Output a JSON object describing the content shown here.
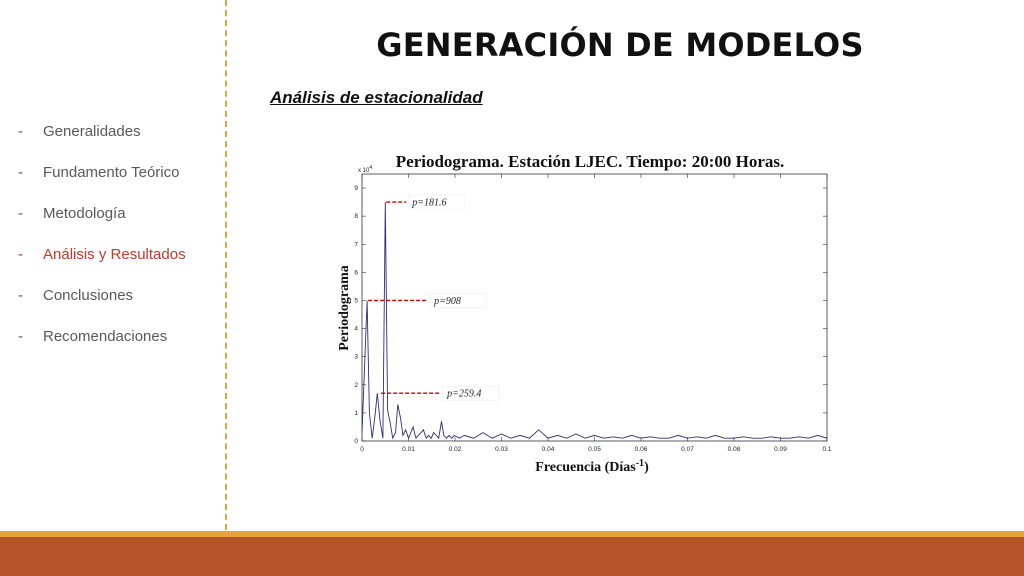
{
  "slide": {
    "title": "GENERACIÓN DE MODELOS",
    "subtitle": "Análisis de estacionalidad"
  },
  "nav": {
    "items": [
      {
        "dash": "-",
        "label": "Generalidades",
        "active": false
      },
      {
        "dash": "-",
        "label": "Fundamento Teórico",
        "active": false
      },
      {
        "dash": "-",
        "label": "Metodología",
        "active": false
      },
      {
        "dash": "-",
        "label": "Análisis y Resultados",
        "active": true
      },
      {
        "dash": "-",
        "label": "Conclusiones",
        "active": false
      },
      {
        "dash": "-",
        "label": " Recomendaciones",
        "active": false
      }
    ]
  },
  "colors": {
    "accent_line": "#e0a63c",
    "footer": "#b65429",
    "footer_thin": "#e8a23d",
    "active_nav": "#c0392b",
    "series": "#2b2f7a",
    "annotation": "#cc0000"
  },
  "chart_data": {
    "type": "line",
    "title": "Periodograma. Estación LJEC. Tiempo: 20:00 Horas.",
    "xlabel": "Frecuencia (Días",
    "xlabel_sup": "-1",
    "xlabel_end": ")",
    "ylabel": "Periodograma",
    "y_multiplier": "x 10",
    "y_multiplier_exp": "4",
    "xlim": [
      0,
      0.1
    ],
    "ylim": [
      0,
      9.5
    ],
    "x_ticks": [
      "0",
      "0.01",
      "0.02",
      "0.03",
      "0.04",
      "0.05",
      "0.06",
      "0.07",
      "0.08",
      "0.09",
      "0.1"
    ],
    "y_ticks": [
      "0",
      "1",
      "2",
      "3",
      "4",
      "5",
      "6",
      "7",
      "8",
      "9"
    ],
    "grid": false,
    "series": [
      {
        "x": [
          0.0,
          0.0005,
          0.0011,
          0.0016,
          0.0022,
          0.0028,
          0.0033,
          0.0039,
          0.0045,
          0.005,
          0.0055,
          0.0061,
          0.0066,
          0.0072,
          0.0077,
          0.0083,
          0.0088,
          0.0094,
          0.01,
          0.0105,
          0.011,
          0.0116,
          0.0121,
          0.0127,
          0.0132,
          0.0138,
          0.0143,
          0.0149,
          0.0154,
          0.016,
          0.0165,
          0.0171,
          0.0176,
          0.0182,
          0.0187,
          0.0193,
          0.0198,
          0.021,
          0.022,
          0.024,
          0.026,
          0.028,
          0.03,
          0.032,
          0.034,
          0.036,
          0.038,
          0.04,
          0.042,
          0.044,
          0.046,
          0.048,
          0.05,
          0.052,
          0.054,
          0.056,
          0.058,
          0.06,
          0.062,
          0.064,
          0.066,
          0.068,
          0.07,
          0.072,
          0.074,
          0.076,
          0.078,
          0.08,
          0.082,
          0.084,
          0.086,
          0.088,
          0.09,
          0.092,
          0.094,
          0.096,
          0.098,
          0.1
        ],
        "y": [
          0.3,
          2.4,
          5.0,
          1.0,
          0.1,
          0.9,
          1.7,
          0.7,
          0.1,
          8.5,
          1.1,
          0.6,
          0.1,
          0.3,
          1.3,
          0.8,
          0.2,
          0.4,
          0.1,
          0.3,
          0.5,
          0.1,
          0.2,
          0.3,
          0.4,
          0.1,
          0.2,
          0.1,
          0.3,
          0.2,
          0.1,
          0.7,
          0.2,
          0.1,
          0.2,
          0.1,
          0.2,
          0.1,
          0.2,
          0.1,
          0.3,
          0.1,
          0.25,
          0.1,
          0.2,
          0.1,
          0.4,
          0.1,
          0.2,
          0.1,
          0.25,
          0.1,
          0.2,
          0.1,
          0.15,
          0.1,
          0.2,
          0.1,
          0.15,
          0.1,
          0.1,
          0.2,
          0.1,
          0.15,
          0.1,
          0.2,
          0.1,
          0.1,
          0.15,
          0.1,
          0.1,
          0.15,
          0.1,
          0.1,
          0.15,
          0.1,
          0.2,
          0.1
        ]
      }
    ],
    "annotations": [
      {
        "label": "p=181.6",
        "x": 0.005,
        "y": 8.5
      },
      {
        "label": "p=908",
        "x": 0.0011,
        "y": 5.0
      },
      {
        "label": "p=259.4",
        "x": 0.0039,
        "y": 1.7
      }
    ]
  }
}
